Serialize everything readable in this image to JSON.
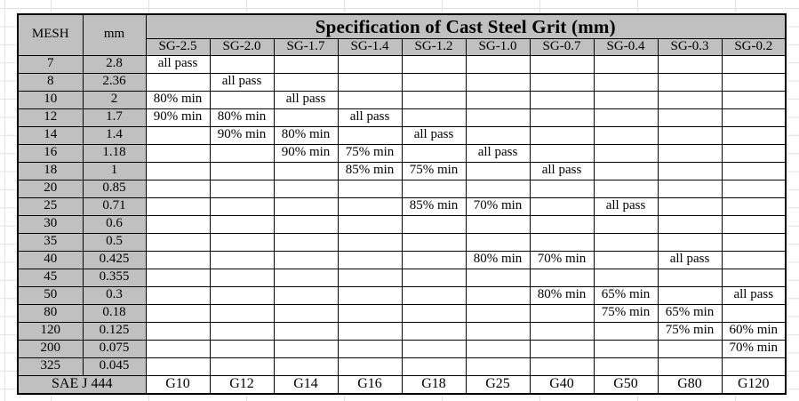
{
  "table": {
    "title": "Specification of Cast Steel Grit (mm)",
    "mesh_header": "MESH",
    "mm_header": "mm",
    "sg_columns": [
      "SG-2.5",
      "SG-2.0",
      "SG-1.7",
      "SG-1.4",
      "SG-1.2",
      "SG-1.0",
      "SG-0.7",
      "SG-0.4",
      "SG-0.3",
      "SG-0.2"
    ],
    "rows": [
      {
        "mesh": "7",
        "mm": "2.8",
        "cells": [
          "all pass",
          "",
          "",
          "",
          "",
          "",
          "",
          "",
          "",
          ""
        ]
      },
      {
        "mesh": "8",
        "mm": "2.36",
        "cells": [
          "",
          "all pass",
          "",
          "",
          "",
          "",
          "",
          "",
          "",
          ""
        ]
      },
      {
        "mesh": "10",
        "mm": "2",
        "cells": [
          "80% min",
          "",
          "all pass",
          "",
          "",
          "",
          "",
          "",
          "",
          ""
        ]
      },
      {
        "mesh": "12",
        "mm": "1.7",
        "cells": [
          "90% min",
          "80% min",
          "",
          "all pass",
          "",
          "",
          "",
          "",
          "",
          ""
        ]
      },
      {
        "mesh": "14",
        "mm": "1.4",
        "cells": [
          "",
          "90% min",
          "80% min",
          "",
          "all pass",
          "",
          "",
          "",
          "",
          ""
        ]
      },
      {
        "mesh": "16",
        "mm": "1.18",
        "cells": [
          "",
          "",
          "90% min",
          "75% min",
          "",
          "all pass",
          "",
          "",
          "",
          ""
        ]
      },
      {
        "mesh": "18",
        "mm": "1",
        "cells": [
          "",
          "",
          "",
          "85% min",
          "75% min",
          "",
          "all pass",
          "",
          "",
          ""
        ]
      },
      {
        "mesh": "20",
        "mm": "0.85",
        "cells": [
          "",
          "",
          "",
          "",
          "",
          "",
          "",
          "",
          "",
          ""
        ]
      },
      {
        "mesh": "25",
        "mm": "0.71",
        "cells": [
          "",
          "",
          "",
          "",
          "85% min",
          "70% min",
          "",
          "all pass",
          "",
          ""
        ]
      },
      {
        "mesh": "30",
        "mm": "0.6",
        "cells": [
          "",
          "",
          "",
          "",
          "",
          "",
          "",
          "",
          "",
          ""
        ]
      },
      {
        "mesh": "35",
        "mm": "0.5",
        "cells": [
          "",
          "",
          "",
          "",
          "",
          "",
          "",
          "",
          "",
          ""
        ]
      },
      {
        "mesh": "40",
        "mm": "0.425",
        "cells": [
          "",
          "",
          "",
          "",
          "",
          "80% min",
          "70% min",
          "",
          "all pass",
          ""
        ]
      },
      {
        "mesh": "45",
        "mm": "0.355",
        "cells": [
          "",
          "",
          "",
          "",
          "",
          "",
          "",
          "",
          "",
          ""
        ]
      },
      {
        "mesh": "50",
        "mm": "0.3",
        "cells": [
          "",
          "",
          "",
          "",
          "",
          "",
          "80% min",
          "65% min",
          "",
          "all pass"
        ]
      },
      {
        "mesh": "80",
        "mm": "0.18",
        "cells": [
          "",
          "",
          "",
          "",
          "",
          "",
          "",
          "75% min",
          "65% min",
          ""
        ]
      },
      {
        "mesh": "120",
        "mm": "0.125",
        "cells": [
          "",
          "",
          "",
          "",
          "",
          "",
          "",
          "",
          "75% min",
          "60% min"
        ]
      },
      {
        "mesh": "200",
        "mm": "0.075",
        "cells": [
          "",
          "",
          "",
          "",
          "",
          "",
          "",
          "",
          "",
          "70% min"
        ]
      },
      {
        "mesh": "325",
        "mm": "0.045",
        "cells": [
          "",
          "",
          "",
          "",
          "",
          "",
          "",
          "",
          "",
          ""
        ]
      }
    ],
    "footer": {
      "label": "SAE J 444",
      "values": [
        "G10",
        "G12",
        "G14",
        "G16",
        "G18",
        "G25",
        "G40",
        "G50",
        "G80",
        "G120"
      ]
    }
  },
  "colors": {
    "header_bg": "#c0c0c0",
    "border": "#000000",
    "gridline": "#e2e2e2",
    "background": "#ffffff"
  }
}
